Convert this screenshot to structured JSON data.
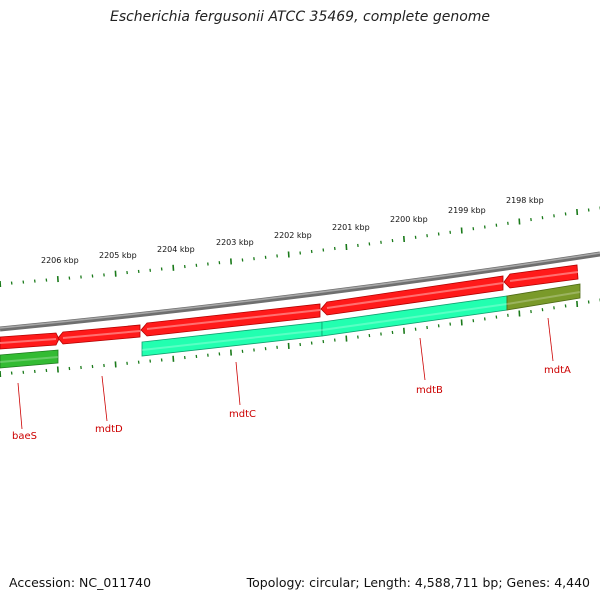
{
  "title": "Escherichia fergusonii ATCC 35469, complete genome",
  "footer": {
    "accession": "Accession: NC_011740",
    "summary": "Topology: circular; Length: 4,588,711 bp; Genes: 4,440"
  },
  "kbp_labels": [
    "2206 kbp",
    "2205 kbp",
    "2204 kbp",
    "2203 kbp",
    "2202 kbp",
    "2201 kbp",
    "2200 kbp",
    "2199 kbp",
    "2198 kbp"
  ],
  "genes": [
    "baeS",
    "mdtD",
    "mdtC",
    "mdtB",
    "mdtA"
  ],
  "colors": {
    "backbone": "#888888",
    "forward_strand": "#ff0000",
    "reverse_cyan": "#22ffb0",
    "reverse_green": "#33bb33",
    "reverse_olive": "#7a9a2a",
    "tick": "#1a7a1a",
    "gene_label": "#cc0000"
  }
}
